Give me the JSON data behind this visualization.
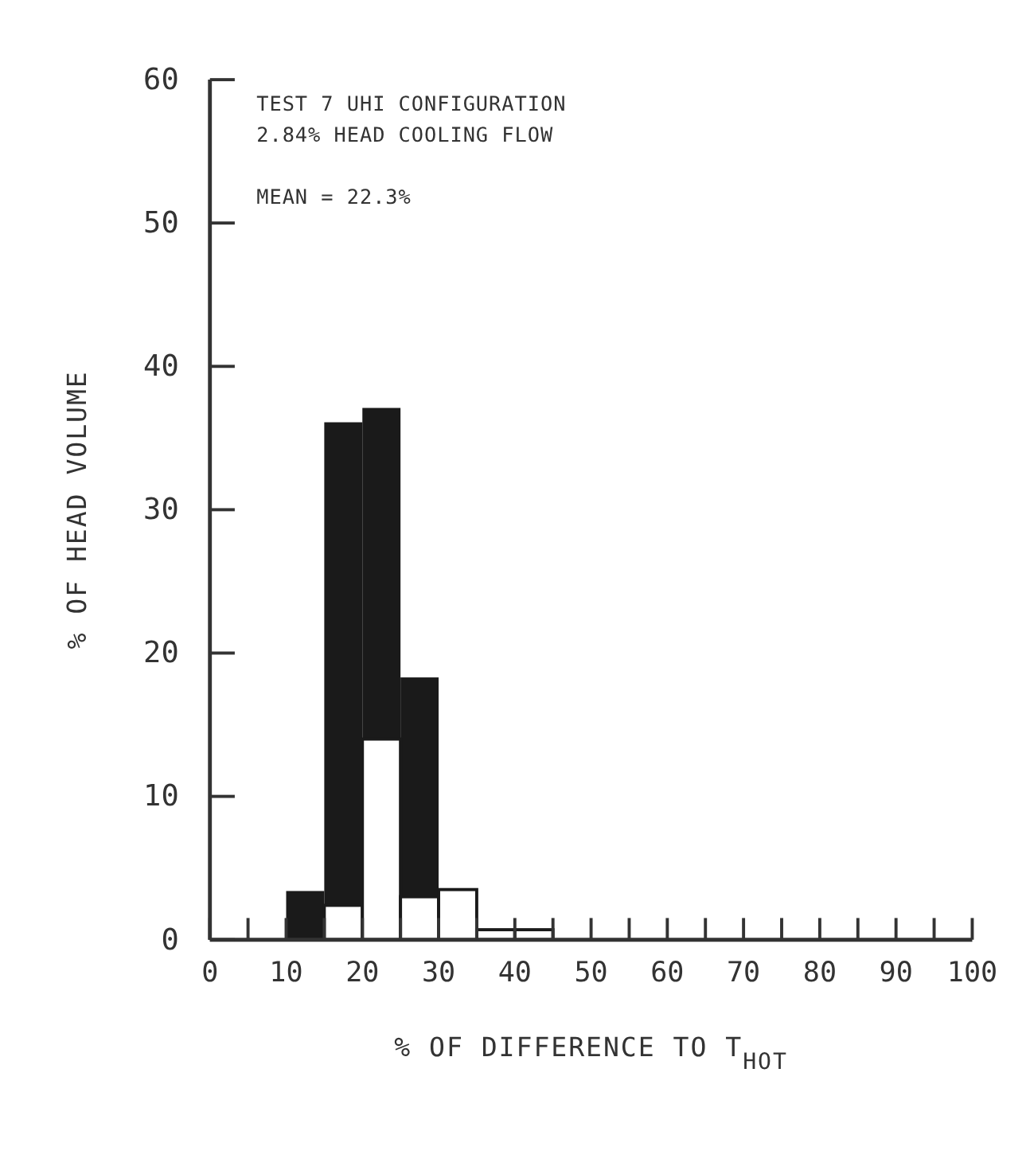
{
  "chart_data": {
    "type": "histogram",
    "xlabel": "% OF DIFFERENCE TO T$_{HOT}$",
    "ylabel": "% OF HEAD VOLUME",
    "annotations": [
      "TEST 7 UHI CONFIGURATION",
      "2.84% HEAD COOLING FLOW",
      "MEAN = 22.3%"
    ],
    "bins": [
      0,
      5,
      10,
      15,
      20,
      25,
      30,
      35,
      40,
      45,
      50,
      55,
      60,
      65,
      70,
      75,
      80,
      85,
      90,
      95,
      100
    ],
    "series": [
      {
        "color": "#1a1a1a",
        "values": [
          0,
          0,
          3.4,
          36.1,
          37.1,
          18.3,
          0,
          0,
          0,
          0,
          0,
          0,
          0,
          0,
          0,
          0,
          0,
          0,
          0,
          0
        ]
      },
      {
        "color": "#ffffff",
        "values": [
          0,
          0,
          0,
          2.4,
          14,
          3,
          3.5,
          0.7,
          0.7,
          0,
          0,
          0,
          0,
          0,
          0,
          0,
          0,
          0,
          0,
          0
        ]
      }
    ],
    "xlim": [
      0,
      100
    ],
    "xticks": [
      0,
      {
        "value": 5,
        "label": null
      },
      10,
      {
        "value": 15,
        "label": null
      },
      20,
      {
        "value": 25,
        "label": null
      },
      30,
      {
        "value": 35,
        "label": null
      },
      40,
      {
        "value": 45,
        "label": null
      },
      50,
      {
        "value": 55,
        "label": null
      },
      60,
      {
        "value": 65,
        "label": null
      },
      70,
      {
        "value": 75,
        "label": null
      },
      80,
      {
        "value": 85,
        "label": null
      },
      90,
      {
        "value": 95,
        "label": null
      },
      100
    ],
    "ylim": [
      0,
      60
    ],
    "yticks": [
      0,
      10,
      20,
      30,
      40,
      50,
      60
    ],
    "grid": false
  }
}
